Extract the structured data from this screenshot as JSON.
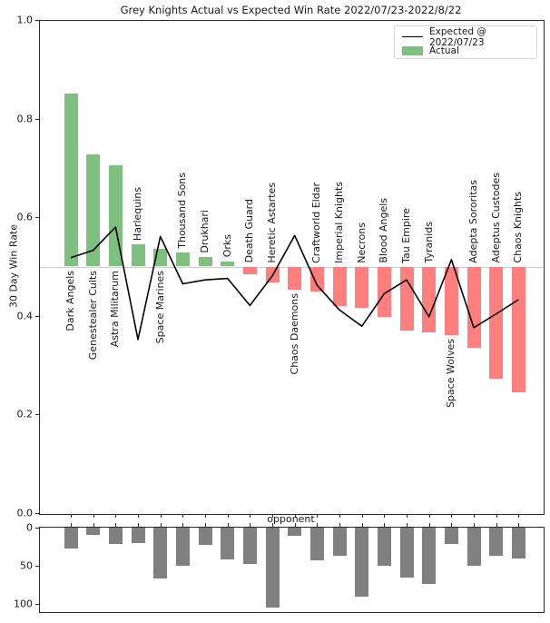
{
  "title": "Grey Knights Actual vs Expected Win Rate 2022/07/23-2022/8/22",
  "legend": {
    "line_label": "Expected @ 2022/07/23",
    "patch_label": "Actual"
  },
  "axes": {
    "main_ylabel": "30 Day Win Rate",
    "main_yticks": [
      "0.0",
      "0.2",
      "0.4",
      "0.6",
      "0.8",
      "1.0"
    ],
    "xlabel": "opponent",
    "sub_yticks": [
      "0",
      "50",
      "100"
    ]
  },
  "colors": {
    "actual_above": "#7fbf7f",
    "actual_below": "#ff7f7f",
    "expected_line": "#000000",
    "games_bar": "#808080",
    "baseline_rule": "#cccccc",
    "spine": "#2b2b2b"
  },
  "chart_data": [
    {
      "type": "bar",
      "subtype": "bar-with-line-overlay",
      "title": "Grey Knights Actual vs Expected Win Rate 2022/07/23-2022/8/22",
      "xlabel": "opponent",
      "ylabel": "30 Day Win Rate",
      "ylim": [
        0.0,
        1.0
      ],
      "baseline": 0.5,
      "grid": false,
      "legend_position": "upper right",
      "categories": [
        "Dark Angels",
        "Genestealer Cults",
        "Astra Militarum",
        "Harlequins",
        "Space Marines",
        "Thousand Sons",
        "Drukhari",
        "Orks",
        "Death Guard",
        "Heretic Astartes",
        "Chaos Daemons",
        "Craftworld Eldar",
        "Imperial Knights",
        "Necrons",
        "Blood Angels",
        "Tau Empire",
        "Tyranids",
        "Space Wolves",
        "Adepta Sororitas",
        "Adeptus Custodes",
        "Chaos Knights"
      ],
      "series": [
        {
          "name": "Actual",
          "type": "bar",
          "values": [
            0.85,
            0.727,
            0.706,
            0.545,
            0.536,
            0.529,
            0.52,
            0.511,
            0.484,
            0.467,
            0.453,
            0.45,
            0.42,
            0.416,
            0.398,
            0.37,
            0.367,
            0.361,
            0.335,
            0.272,
            0.245
          ]
        },
        {
          "name": "Expected @ 2022/07/23",
          "type": "line",
          "values": [
            0.518,
            0.533,
            0.58,
            0.352,
            0.561,
            0.465,
            0.473,
            0.476,
            0.421,
            0.481,
            0.563,
            0.462,
            0.412,
            0.379,
            0.445,
            0.473,
            0.398,
            0.514,
            0.376,
            0.404,
            0.433
          ]
        }
      ]
    },
    {
      "type": "bar",
      "subtype": "inverted-count",
      "title": "",
      "xlabel": "",
      "ylabel": "",
      "ylim": [
        0,
        110
      ],
      "yticks": [
        0,
        50,
        100
      ],
      "inverted": true,
      "categories": [
        "Dark Angels",
        "Genestealer Cults",
        "Astra Militarum",
        "Harlequins",
        "Space Marines",
        "Thousand Sons",
        "Drukhari",
        "Orks",
        "Death Guard",
        "Heretic Astartes",
        "Chaos Daemons",
        "Craftworld Eldar",
        "Imperial Knights",
        "Necrons",
        "Blood Angels",
        "Tau Empire",
        "Tyranids",
        "Space Wolves",
        "Adepta Sororitas",
        "Adeptus Custodes",
        "Chaos Knights"
      ],
      "values": [
        27,
        10,
        21,
        20,
        67,
        50,
        23,
        42,
        48,
        105,
        11,
        43,
        37,
        91,
        50,
        65,
        74,
        21,
        50,
        37,
        41
      ]
    }
  ]
}
